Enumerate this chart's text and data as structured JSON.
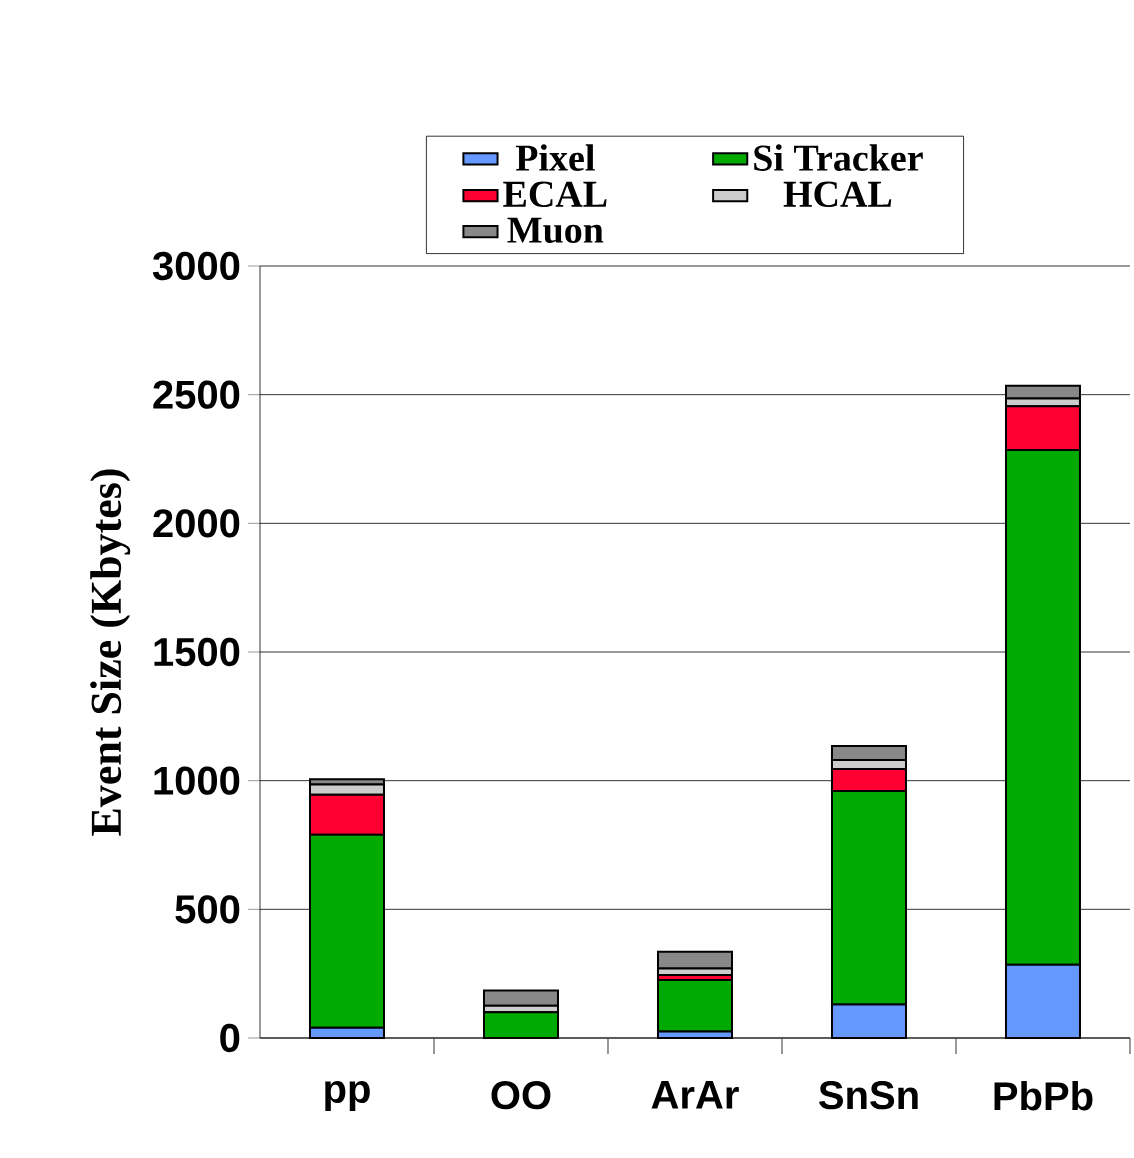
{
  "chart_data": {
    "type": "bar",
    "stacked": true,
    "ylabel": "Event Size (Kbytes)",
    "categories": [
      "pp",
      "OO",
      "ArAr",
      "SnSn",
      "PbPb"
    ],
    "series": [
      {
        "name": "Pixel",
        "color": "#6699ff",
        "values": [
          40,
          null,
          25,
          130,
          285
        ]
      },
      {
        "name": "Si Tracker",
        "color": "#00aa00",
        "values": [
          750,
          100,
          200,
          830,
          2000
        ]
      },
      {
        "name": "ECAL",
        "color": "#ff0033",
        "values": [
          155,
          null,
          20,
          85,
          170
        ]
      },
      {
        "name": "HCAL",
        "color": "#cccccc",
        "values": [
          40,
          25,
          25,
          35,
          30
        ]
      },
      {
        "name": "Muon",
        "color": "#888888",
        "values": [
          20,
          60,
          65,
          55,
          50
        ]
      }
    ],
    "ylim": [
      0,
      3000
    ],
    "yticks": [
      0,
      500,
      1000,
      1500,
      2000,
      2500,
      3000
    ],
    "grid": "y",
    "legend": "top"
  }
}
